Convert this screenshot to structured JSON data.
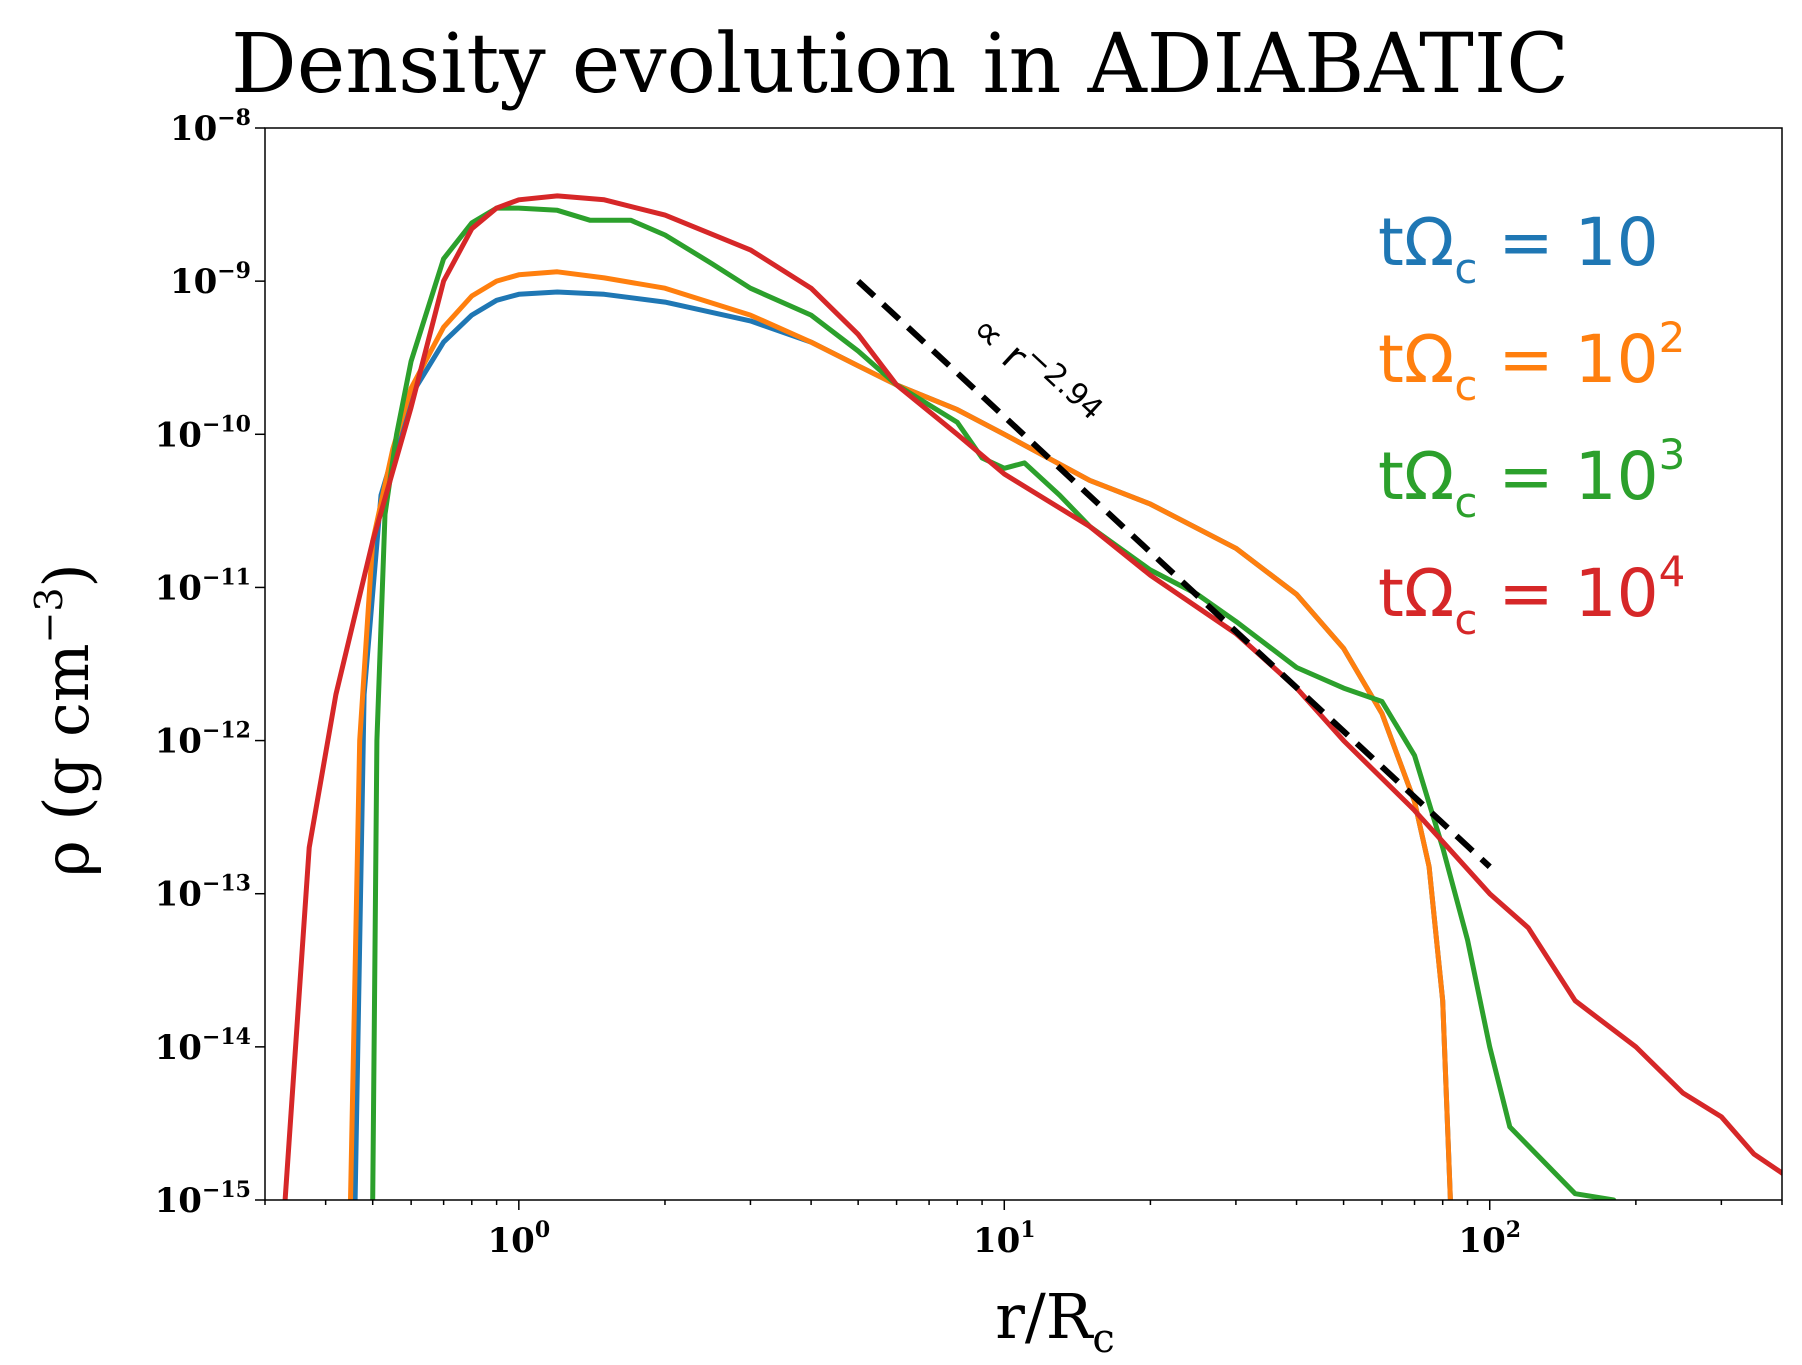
{
  "chart_data": {
    "type": "line",
    "title": "Density evolution in ADIABATIC",
    "xlabel": {
      "main": "r/R",
      "sub": "c"
    },
    "ylabel": {
      "main": "ρ (g cm",
      "sup": "−3",
      "close": ")"
    },
    "xscale": "log",
    "yscale": "log",
    "xlim": [
      0.3,
      400
    ],
    "ylim": [
      1e-15,
      1e-08
    ],
    "grid": false,
    "x_ticks": [
      {
        "value": 1,
        "base": "10",
        "exp": "0"
      },
      {
        "value": 10,
        "base": "10",
        "exp": "1"
      },
      {
        "value": 100,
        "base": "10",
        "exp": "2"
      }
    ],
    "y_ticks": [
      {
        "value": 1e-08,
        "base": "10",
        "exp": "−8"
      },
      {
        "value": 1e-09,
        "base": "10",
        "exp": "−9"
      },
      {
        "value": 1e-10,
        "base": "10",
        "exp": "−10"
      },
      {
        "value": 1e-11,
        "base": "10",
        "exp": "−11"
      },
      {
        "value": 1e-12,
        "base": "10",
        "exp": "−12"
      },
      {
        "value": 1e-13,
        "base": "10",
        "exp": "−13"
      },
      {
        "value": 1e-14,
        "base": "10",
        "exp": "−14"
      },
      {
        "value": 1e-15,
        "base": "10",
        "exp": "−15"
      }
    ],
    "legend_position": "top-right",
    "series": [
      {
        "label": {
          "prefix": "tΩ",
          "sub": "c",
          "eq": " = 10",
          "sup": ""
        },
        "color": "#1f77b4",
        "points": [
          [
            0.46,
            1e-15
          ],
          [
            0.48,
            2e-12
          ],
          [
            0.52,
            4e-11
          ],
          [
            0.6,
            1.8e-10
          ],
          [
            0.7,
            4e-10
          ],
          [
            0.8,
            6e-10
          ],
          [
            0.9,
            7.5e-10
          ],
          [
            1.0,
            8.2e-10
          ],
          [
            1.2,
            8.5e-10
          ],
          [
            1.5,
            8.2e-10
          ],
          [
            2.0,
            7.3e-10
          ],
          [
            3.0,
            5.5e-10
          ],
          [
            4.0,
            4e-10
          ],
          [
            5.0,
            2.8e-10
          ],
          [
            6.0,
            2.1e-10
          ],
          [
            8.0,
            1.45e-10
          ],
          [
            10.0,
            1e-10
          ],
          [
            15.0,
            5e-11
          ],
          [
            20.0,
            3.5e-11
          ],
          [
            30.0,
            1.8e-11
          ],
          [
            40.0,
            9e-12
          ],
          [
            50.0,
            4e-12
          ],
          [
            60.0,
            1.5e-12
          ],
          [
            70.0,
            4e-13
          ],
          [
            75.0,
            1.5e-13
          ],
          [
            80.0,
            2e-14
          ],
          [
            83.0,
            1e-15
          ]
        ]
      },
      {
        "label": {
          "prefix": "tΩ",
          "sub": "c",
          "eq": " = 10",
          "sup": "2"
        },
        "color": "#ff7f0e",
        "points": [
          [
            0.45,
            1e-15
          ],
          [
            0.47,
            1e-12
          ],
          [
            0.5,
            2e-11
          ],
          [
            0.55,
            8e-11
          ],
          [
            0.6,
            2e-10
          ],
          [
            0.7,
            5e-10
          ],
          [
            0.8,
            8e-10
          ],
          [
            0.9,
            1e-09
          ],
          [
            1.0,
            1.1e-09
          ],
          [
            1.2,
            1.15e-09
          ],
          [
            1.5,
            1.05e-09
          ],
          [
            2.0,
            9e-10
          ],
          [
            3.0,
            6e-10
          ],
          [
            4.0,
            4e-10
          ],
          [
            5.0,
            2.8e-10
          ],
          [
            6.0,
            2.1e-10
          ],
          [
            8.0,
            1.45e-10
          ],
          [
            10.0,
            1e-10
          ],
          [
            15.0,
            5e-11
          ],
          [
            20.0,
            3.5e-11
          ],
          [
            30.0,
            1.8e-11
          ],
          [
            40.0,
            9e-12
          ],
          [
            50.0,
            4e-12
          ],
          [
            60.0,
            1.5e-12
          ],
          [
            70.0,
            4e-13
          ],
          [
            75.0,
            1.5e-13
          ],
          [
            80.0,
            2e-14
          ],
          [
            83.0,
            1e-15
          ]
        ]
      },
      {
        "label": {
          "prefix": "tΩ",
          "sub": "c",
          "eq": " = 10",
          "sup": "3"
        },
        "color": "#2ca02c",
        "points": [
          [
            0.5,
            1e-15
          ],
          [
            0.51,
            1e-12
          ],
          [
            0.53,
            3e-11
          ],
          [
            0.56,
            1e-10
          ],
          [
            0.6,
            3e-10
          ],
          [
            0.7,
            1.4e-09
          ],
          [
            0.8,
            2.4e-09
          ],
          [
            0.9,
            3e-09
          ],
          [
            1.0,
            3e-09
          ],
          [
            1.2,
            2.9e-09
          ],
          [
            1.4,
            2.5e-09
          ],
          [
            1.7,
            2.5e-09
          ],
          [
            2.0,
            2e-09
          ],
          [
            2.5,
            1.3e-09
          ],
          [
            3.0,
            9e-10
          ],
          [
            4.0,
            6e-10
          ],
          [
            5.0,
            3.5e-10
          ],
          [
            6.0,
            2.1e-10
          ],
          [
            8.0,
            1.2e-10
          ],
          [
            9.0,
            7e-11
          ],
          [
            10.0,
            6e-11
          ],
          [
            11.0,
            6.5e-11
          ],
          [
            13.0,
            4e-11
          ],
          [
            15.0,
            2.5e-11
          ],
          [
            20.0,
            1.3e-11
          ],
          [
            25.0,
            9e-12
          ],
          [
            30.0,
            6e-12
          ],
          [
            40.0,
            3e-12
          ],
          [
            50.0,
            2.2e-12
          ],
          [
            60.0,
            1.8e-12
          ],
          [
            70.0,
            8e-13
          ],
          [
            80.0,
            2e-13
          ],
          [
            90.0,
            5e-14
          ],
          [
            100.0,
            1e-14
          ],
          [
            110.0,
            3e-15
          ],
          [
            150.0,
            1.1e-15
          ],
          [
            180.0,
            1e-15
          ]
        ]
      },
      {
        "label": {
          "prefix": "tΩ",
          "sub": "c",
          "eq": " = 10",
          "sup": "4"
        },
        "color": "#d62728",
        "points": [
          [
            0.33,
            1e-15
          ],
          [
            0.37,
            2e-13
          ],
          [
            0.42,
            2e-12
          ],
          [
            0.5,
            2e-11
          ],
          [
            0.6,
            1.5e-10
          ],
          [
            0.7,
            1e-09
          ],
          [
            0.8,
            2.2e-09
          ],
          [
            0.9,
            3e-09
          ],
          [
            1.0,
            3.4e-09
          ],
          [
            1.2,
            3.6e-09
          ],
          [
            1.5,
            3.4e-09
          ],
          [
            2.0,
            2.7e-09
          ],
          [
            3.0,
            1.6e-09
          ],
          [
            4.0,
            9e-10
          ],
          [
            5.0,
            4.5e-10
          ],
          [
            6.0,
            2.1e-10
          ],
          [
            8.0,
            1e-10
          ],
          [
            10.0,
            5.5e-11
          ],
          [
            15.0,
            2.5e-11
          ],
          [
            20.0,
            1.2e-11
          ],
          [
            30.0,
            5e-12
          ],
          [
            40.0,
            2.2e-12
          ],
          [
            50.0,
            1e-12
          ],
          [
            70.0,
            3.5e-13
          ],
          [
            100.0,
            1e-13
          ],
          [
            120.0,
            6e-14
          ],
          [
            150.0,
            2e-14
          ],
          [
            200.0,
            1e-14
          ],
          [
            250.0,
            5e-15
          ],
          [
            300.0,
            3.5e-15
          ],
          [
            350.0,
            2e-15
          ],
          [
            400.0,
            1.5e-15
          ]
        ]
      }
    ],
    "fit_line": {
      "color": "#000000",
      "style": "dashed",
      "points": [
        [
          5,
          1e-09
        ],
        [
          100,
          1.5e-13
        ]
      ],
      "label": {
        "text": "∝ r",
        "sup": "−2.94"
      }
    }
  }
}
